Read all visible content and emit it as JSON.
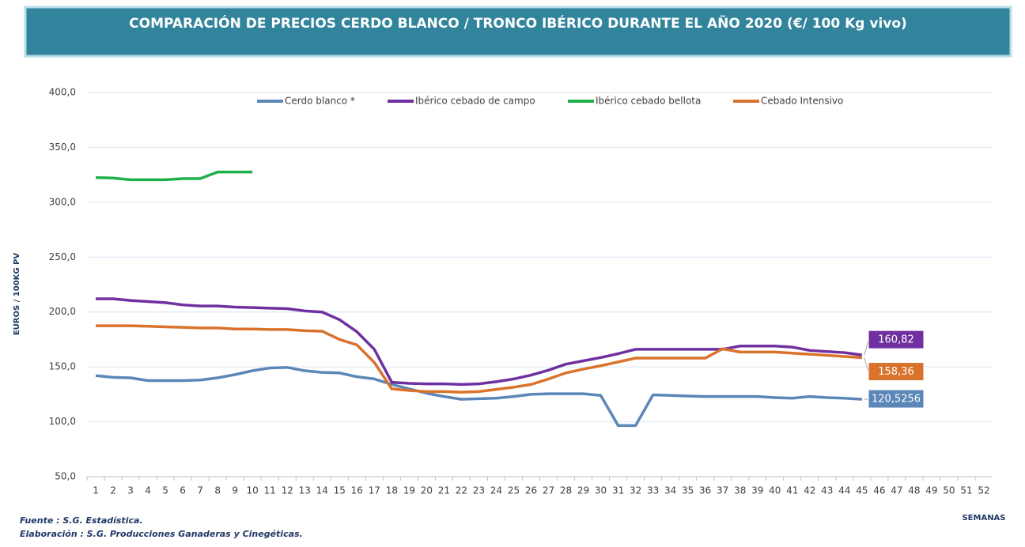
{
  "chart_data": {
    "type": "line",
    "title": "COMPARACIÓN DE PRECIOS CERDO BLANCO / TRONCO IBÉRICO DURANTE EL AÑO 2020 (€/ 100 Kg vivo)",
    "ylabel": "EUROS / 100KG PV",
    "xlabel": "SEMANAS",
    "source": "Fuente :  S.G. Estadística.",
    "credit": "Elaboración : S.G. Producciones Ganaderas y Cinegéticas.",
    "categories": [
      "1",
      "2",
      "3",
      "4",
      "5",
      "6",
      "7",
      "8",
      "9",
      "10",
      "11",
      "12",
      "13",
      "14",
      "15",
      "16",
      "17",
      "18",
      "19",
      "20",
      "21",
      "22",
      "23",
      "24",
      "25",
      "26",
      "27",
      "28",
      "29",
      "30",
      "31",
      "32",
      "33",
      "34",
      "35",
      "36",
      "37",
      "38",
      "39",
      "40",
      "41",
      "42",
      "43",
      "44",
      "45",
      "46",
      "47",
      "48",
      "49",
      "50",
      "51",
      "52"
    ],
    "ylim": [
      50,
      400
    ],
    "yticks": [
      {
        "value": 50,
        "label": "50,0"
      },
      {
        "value": 100,
        "label": "100,0"
      },
      {
        "value": 150,
        "label": "150,0"
      },
      {
        "value": 200,
        "label": "200,0"
      },
      {
        "value": 250,
        "label": "250,0"
      },
      {
        "value": 300,
        "label": "300,0"
      },
      {
        "value": 350,
        "label": "350,0"
      },
      {
        "value": 400,
        "label": "400,0"
      }
    ],
    "grid": true,
    "legend": "top",
    "series": [
      {
        "name": "Cerdo blanco *",
        "color": "#5b87b8",
        "values": [
          142,
          140.5,
          140,
          137.5,
          137.5,
          137.5,
          138,
          140,
          143,
          146.5,
          149,
          149.5,
          146.5,
          145,
          144.5,
          141,
          139,
          134,
          130,
          126,
          123,
          120.5,
          121,
          121.5,
          123,
          125,
          125.5,
          125.5,
          125.5,
          124,
          96.5,
          96.5,
          124.5,
          124,
          123.5,
          123,
          123,
          123,
          123,
          122,
          121.5,
          123,
          122,
          121.5,
          120.5256,
          null,
          null,
          null,
          null,
          null,
          null,
          null
        ],
        "value_labels": [
          null,
          null,
          null,
          null,
          null,
          null,
          null,
          null,
          null,
          null,
          null,
          null,
          null,
          null,
          null,
          null,
          null,
          null,
          null,
          null,
          null,
          null,
          null,
          null,
          null,
          null,
          null,
          null,
          null,
          null,
          null,
          null,
          null,
          null,
          null,
          null,
          null,
          null,
          null,
          null,
          null,
          null,
          null,
          null,
          "120,5256",
          null,
          null,
          null,
          null,
          null,
          null,
          null
        ]
      },
      {
        "name": "Ibérico cebado de campo",
        "color": "#7030a0",
        "values": [
          212,
          212,
          210.5,
          209.5,
          208.5,
          206.5,
          205.5,
          205.5,
          204.5,
          204,
          203.5,
          203,
          201,
          200,
          193,
          182,
          166,
          136,
          135,
          134.5,
          134.5,
          134,
          134.5,
          136.5,
          139,
          142.5,
          147,
          152.5,
          155.5,
          158.5,
          162,
          166,
          166,
          166,
          166,
          166,
          166,
          169,
          169,
          169,
          168,
          165,
          164,
          163,
          160.82,
          null,
          null,
          null,
          null,
          null,
          null,
          null
        ],
        "value_labels": [
          null,
          null,
          null,
          null,
          null,
          null,
          null,
          null,
          null,
          null,
          null,
          null,
          null,
          null,
          null,
          null,
          null,
          null,
          null,
          null,
          null,
          null,
          null,
          null,
          null,
          null,
          null,
          null,
          null,
          null,
          null,
          null,
          null,
          null,
          null,
          null,
          null,
          null,
          null,
          null,
          null,
          null,
          null,
          null,
          "160,82",
          null,
          null,
          null,
          null,
          null,
          null,
          null
        ]
      },
      {
        "name": "Ibérico cebado bellota",
        "color": "#1fb04c",
        "values": [
          322.5,
          322,
          320.5,
          320.5,
          320.5,
          321.5,
          321.5,
          327.5,
          327.5,
          327.5,
          null,
          null,
          null,
          null,
          null,
          null,
          null,
          null,
          null,
          null,
          null,
          null,
          null,
          null,
          null,
          null,
          null,
          null,
          null,
          null,
          null,
          null,
          null,
          null,
          null,
          null,
          null,
          null,
          null,
          null,
          null,
          null,
          null,
          null,
          null,
          null,
          null,
          null,
          null,
          null,
          null,
          null
        ]
      },
      {
        "name": "Cebado Intensivo",
        "color": "#d9732b",
        "values": [
          187.5,
          187.5,
          187.5,
          187,
          186.5,
          186,
          185.5,
          185.5,
          184.5,
          184.5,
          184,
          184,
          183,
          182.5,
          175,
          170,
          154,
          130,
          128.5,
          127.5,
          127.5,
          127,
          127.5,
          129.5,
          131.5,
          134,
          139,
          144.5,
          148,
          151,
          154.5,
          158,
          158,
          158,
          158,
          158,
          166.5,
          163.5,
          163.5,
          163.5,
          162.5,
          161.5,
          160.5,
          159.5,
          158.36,
          null,
          null,
          null,
          null,
          null,
          null,
          null
        ],
        "value_labels": [
          null,
          null,
          null,
          null,
          null,
          null,
          null,
          null,
          null,
          null,
          null,
          null,
          null,
          null,
          null,
          null,
          null,
          null,
          null,
          null,
          null,
          null,
          null,
          null,
          null,
          null,
          null,
          null,
          null,
          null,
          null,
          null,
          null,
          null,
          null,
          null,
          null,
          null,
          null,
          null,
          null,
          null,
          null,
          null,
          "158,36",
          null,
          null,
          null,
          null,
          null,
          null,
          null
        ]
      }
    ]
  }
}
